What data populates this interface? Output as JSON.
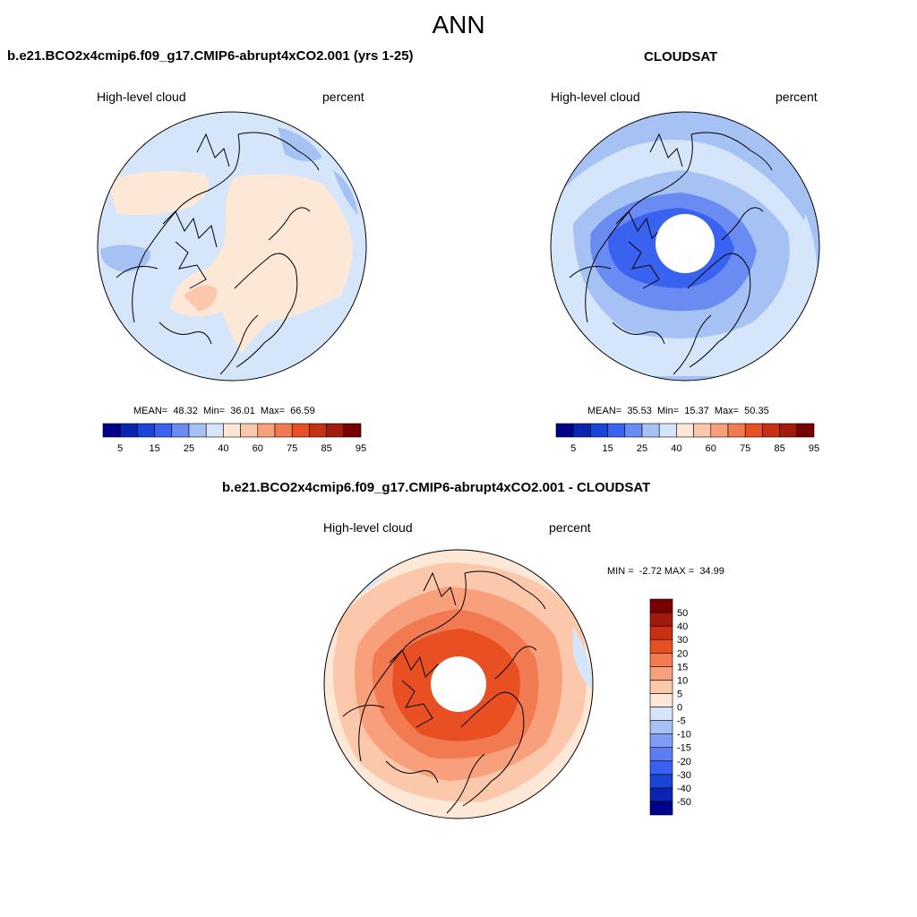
{
  "figure": {
    "season": "ANN",
    "top_left": {
      "title": "b.e21.BCO2x4cmip6.f09_g17.CMIP6-abrupt4xCO2.001 (yrs 1-25)",
      "variable": "High-level cloud",
      "units": "percent",
      "stats": "MEAN=  48.32  Min=  36.01  Max=  66.59"
    },
    "top_right": {
      "title": "CLOUDSAT",
      "variable": "High-level cloud",
      "units": "percent",
      "stats": "MEAN=  35.53  Min=  15.37  Max=  50.35"
    },
    "bottom": {
      "title": "b.e21.BCO2x4cmip6.f09_g17.CMIP6-abrupt4xCO2.001 - CLOUDSAT",
      "variable": "High-level cloud",
      "units": "percent",
      "stats": "MIN =  -2.72 MAX =  34.99"
    }
  },
  "colors": {
    "abs_scale": [
      "#00008b",
      "#0a24b2",
      "#1a44d8",
      "#3a62f0",
      "#6a8cf2",
      "#a6c2f5",
      "#d6e6fa",
      "#fde8d8",
      "#fbc8ac",
      "#f8a07c",
      "#f27a50",
      "#e84f22",
      "#c83012",
      "#a21a0a",
      "#780000"
    ],
    "diff_scale": [
      "#00008b",
      "#0a24b2",
      "#1a44d8",
      "#3a62f0",
      "#5a7ef2",
      "#7f9cf4",
      "#a6c2f5",
      "#d6e6fa",
      "#fde8d8",
      "#fbc8ac",
      "#f8a07c",
      "#f27a50",
      "#e84f22",
      "#c83012",
      "#a21a0a",
      "#780000"
    ],
    "land_outline": "#000000"
  },
  "chart_data": [
    {
      "type": "heatmap",
      "projection": "north-polar-stereographic",
      "title": "b.e21.BCO2x4cmip6.f09_g17.CMIP6-abrupt4xCO2.001 (yrs 1-25)",
      "variable": "High-level cloud",
      "units": "percent",
      "mean": 48.32,
      "min": 36.01,
      "max": 66.59,
      "colorbar_orientation": "horizontal",
      "colorbar_levels": [
        5,
        10,
        15,
        20,
        25,
        30,
        40,
        50,
        60,
        70,
        75,
        80,
        85,
        90,
        95
      ],
      "colorbar_tick_labels": [
        "5",
        "15",
        "25",
        "40",
        "60",
        "75",
        "85",
        "95"
      ]
    },
    {
      "type": "heatmap",
      "projection": "north-polar-stereographic",
      "title": "CLOUDSAT",
      "variable": "High-level cloud",
      "units": "percent",
      "mean": 35.53,
      "min": 15.37,
      "max": 50.35,
      "missing_region": "polar cap (no data)",
      "colorbar_orientation": "horizontal",
      "colorbar_levels": [
        5,
        10,
        15,
        20,
        25,
        30,
        40,
        50,
        60,
        70,
        75,
        80,
        85,
        90,
        95
      ],
      "colorbar_tick_labels": [
        "5",
        "15",
        "25",
        "40",
        "60",
        "75",
        "85",
        "95"
      ]
    },
    {
      "type": "heatmap",
      "projection": "north-polar-stereographic",
      "title": "b.e21.BCO2x4cmip6.f09_g17.CMIP6-abrupt4xCO2.001 - CLOUDSAT",
      "variable": "High-level cloud",
      "units": "percent",
      "min": -2.72,
      "max": 34.99,
      "missing_region": "polar cap (no data)",
      "colorbar_orientation": "vertical",
      "colorbar_levels": [
        50,
        40,
        30,
        20,
        15,
        10,
        5,
        0,
        -5,
        -10,
        -15,
        -20,
        -30,
        -40,
        -50
      ],
      "colorbar_tick_labels": [
        "50",
        "40",
        "30",
        "20",
        "15",
        "10",
        "5",
        "0",
        "-5",
        "-10",
        "-15",
        "-20",
        "-30",
        "-40",
        "-50"
      ]
    }
  ]
}
